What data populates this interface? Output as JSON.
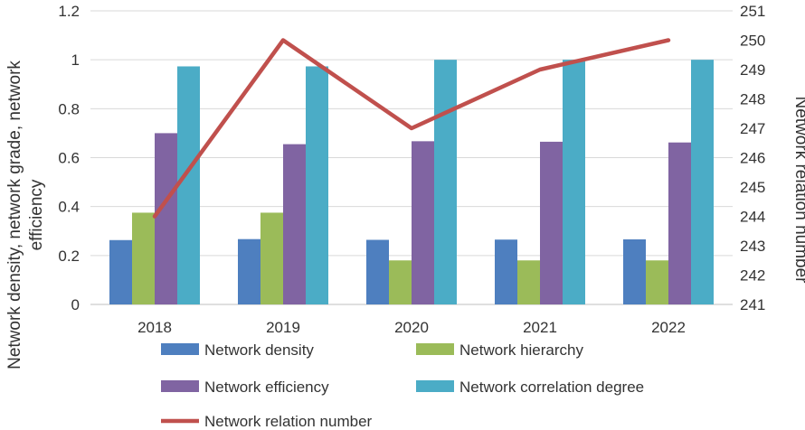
{
  "chart_data": {
    "type": "bar",
    "categories": [
      "2018",
      "2019",
      "2020",
      "2021",
      "2022"
    ],
    "series": [
      {
        "name": "Network density",
        "values": [
          0.263,
          0.267,
          0.264,
          0.265,
          0.266
        ],
        "color": "#4e7fbf",
        "axis": "left"
      },
      {
        "name": "Network hierarchy",
        "values": [
          0.375,
          0.375,
          0.18,
          0.18,
          0.18
        ],
        "color": "#9bbb59",
        "axis": "left"
      },
      {
        "name": "Network efficiency",
        "values": [
          0.7,
          0.655,
          0.667,
          0.665,
          0.662
        ],
        "color": "#8064a2",
        "axis": "left"
      },
      {
        "name": "Network correlation degree",
        "values": [
          0.973,
          0.973,
          1.0,
          1.0,
          1.0
        ],
        "color": "#4bacc6",
        "axis": "left"
      }
    ],
    "line_series": {
      "name": "Network relation number",
      "values": [
        244,
        250,
        247,
        249,
        250
      ],
      "color": "#c0504d",
      "axis": "right"
    },
    "ylabel": "Network density, network grade, network efficiency",
    "ylabel_line1": "Network density, network grade, network",
    "ylabel_line2": "efficiency",
    "y2label": "Network relation number",
    "ylim": [
      0,
      1.2
    ],
    "yticks": [
      "0",
      "0.2",
      "0.4",
      "0.6",
      "0.8",
      "1",
      "1.2"
    ],
    "y2lim": [
      241,
      251
    ],
    "y2ticks": [
      "241",
      "242",
      "243",
      "244",
      "245",
      "246",
      "247",
      "248",
      "249",
      "250",
      "251"
    ],
    "legend_position": "bottom",
    "gridlines": true
  }
}
